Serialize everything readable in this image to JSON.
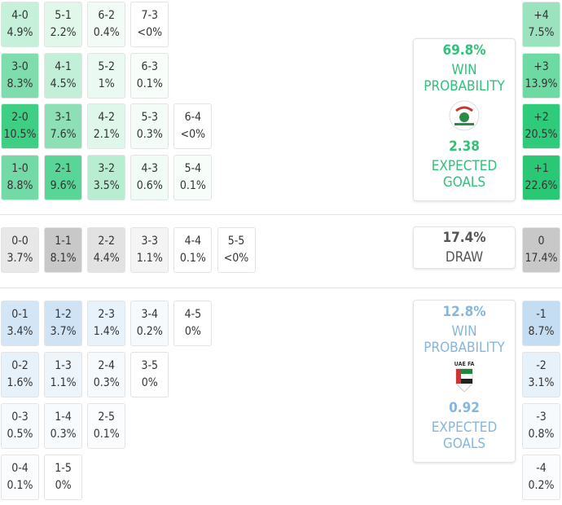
{
  "home": {
    "grid": [
      [
        {
          "score": "4-0",
          "pct": "4.9%",
          "color": "#c5f0da"
        },
        {
          "score": "5-1",
          "pct": "2.2%",
          "color": "#e0f7ea"
        },
        {
          "score": "6-2",
          "pct": "0.4%",
          "color": "#f2fbf6"
        },
        {
          "score": "7-3",
          "pct": "<0%",
          "color": "#ffffff"
        }
      ],
      [
        {
          "score": "3-0",
          "pct": "8.3%",
          "color": "#7edcad"
        },
        {
          "score": "4-1",
          "pct": "4.5%",
          "color": "#c2efd8"
        },
        {
          "score": "5-2",
          "pct": "1%",
          "color": "#eaf9f1"
        },
        {
          "score": "6-3",
          "pct": "0.1%",
          "color": "#f7fdf9"
        }
      ],
      [
        {
          "score": "2-0",
          "pct": "10.5%",
          "color": "#3ecf85"
        },
        {
          "score": "3-1",
          "pct": "7.6%",
          "color": "#8de0b6"
        },
        {
          "score": "4-2",
          "pct": "2.1%",
          "color": "#dff7ea"
        },
        {
          "score": "5-3",
          "pct": "0.3%",
          "color": "#f4fcf8"
        },
        {
          "score": "6-4",
          "pct": "<0%",
          "color": "#ffffff"
        }
      ],
      [
        {
          "score": "1-0",
          "pct": "8.8%",
          "color": "#73d9a6"
        },
        {
          "score": "2-1",
          "pct": "9.6%",
          "color": "#5ad598"
        },
        {
          "score": "3-2",
          "pct": "3.5%",
          "color": "#b8edd2"
        },
        {
          "score": "4-3",
          "pct": "0.6%",
          "color": "#f0fbf5"
        },
        {
          "score": "5-4",
          "pct": "0.1%",
          "color": "#f7fdf9"
        }
      ]
    ],
    "margins": [
      {
        "label": "+4",
        "pct": "7.5%",
        "color": "#9ae3be"
      },
      {
        "label": "+3",
        "pct": "13.9%",
        "color": "#6dd9a3"
      },
      {
        "label": "+2",
        "pct": "20.5%",
        "color": "#2ecc7a"
      },
      {
        "label": "+1",
        "pct": "22.6%",
        "color": "#2ac875"
      }
    ],
    "summary": {
      "win_pct": "69.8%",
      "win_label": "WIN PROBABILITY",
      "xg": "2.38",
      "xg_label": "EXPECTED GOALS"
    }
  },
  "draw": {
    "grid": [
      [
        {
          "score": "0-0",
          "pct": "3.7%",
          "color": "#e8e8e8"
        },
        {
          "score": "1-1",
          "pct": "8.1%",
          "color": "#c8c8c8"
        },
        {
          "score": "2-2",
          "pct": "4.4%",
          "color": "#e2e2e2"
        },
        {
          "score": "3-3",
          "pct": "1.1%",
          "color": "#f4f4f4"
        },
        {
          "score": "4-4",
          "pct": "0.1%",
          "color": "#ffffff"
        },
        {
          "score": "5-5",
          "pct": "<0%",
          "color": "#ffffff"
        }
      ]
    ],
    "margins": [
      {
        "label": "0",
        "pct": "17.4%",
        "color": "#c8c8c8"
      }
    ],
    "summary": {
      "pct": "17.4%",
      "label": "DRAW"
    }
  },
  "away": {
    "grid": [
      [
        {
          "score": "0-1",
          "pct": "3.4%",
          "color": "#d4e6f6"
        },
        {
          "score": "1-2",
          "pct": "3.7%",
          "color": "#cfe3f5"
        },
        {
          "score": "2-3",
          "pct": "1.4%",
          "color": "#e8f2fb"
        },
        {
          "score": "3-4",
          "pct": "0.2%",
          "color": "#f6fafd"
        },
        {
          "score": "4-5",
          "pct": "0%",
          "color": "#ffffff"
        }
      ],
      [
        {
          "score": "0-2",
          "pct": "1.6%",
          "color": "#e6f1fa"
        },
        {
          "score": "1-3",
          "pct": "1.1%",
          "color": "#edf5fb"
        },
        {
          "score": "2-4",
          "pct": "0.3%",
          "color": "#f6fafd"
        },
        {
          "score": "3-5",
          "pct": "0%",
          "color": "#ffffff"
        }
      ],
      [
        {
          "score": "0-3",
          "pct": "0.5%",
          "color": "#f6fafd"
        },
        {
          "score": "1-4",
          "pct": "0.3%",
          "color": "#f8fbfd"
        },
        {
          "score": "2-5",
          "pct": "0.1%",
          "color": "#fafcfe"
        }
      ],
      [
        {
          "score": "0-4",
          "pct": "0.1%",
          "color": "#fafcfe"
        },
        {
          "score": "1-5",
          "pct": "0%",
          "color": "#ffffff"
        }
      ]
    ],
    "margins": [
      {
        "label": "-1",
        "pct": "8.7%",
        "color": "#c5ddf2"
      },
      {
        "label": "-2",
        "pct": "3.1%",
        "color": "#e6f1fa"
      },
      {
        "label": "-3",
        "pct": "0.8%",
        "color": "#f6fafd"
      },
      {
        "label": "-4",
        "pct": "0.2%",
        "color": "#fafcfe"
      }
    ],
    "summary": {
      "win_pct": "12.8%",
      "win_label": "WIN PROBABILITY",
      "logo_text": "UAE FA",
      "xg": "0.92",
      "xg_label": "EXPECTED GOALS"
    }
  }
}
